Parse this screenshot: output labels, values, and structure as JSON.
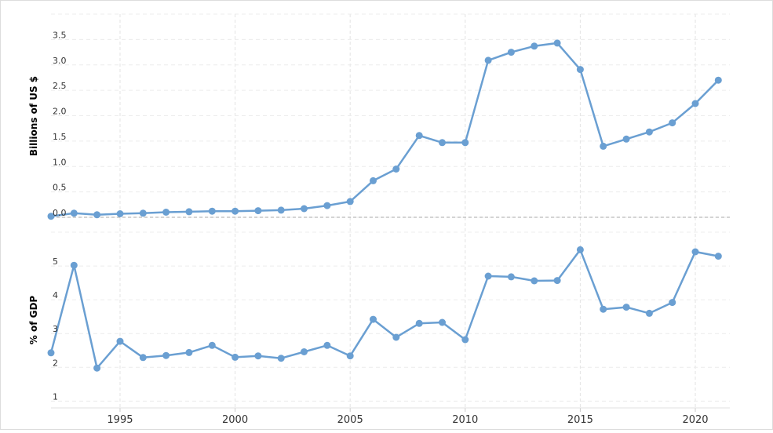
{
  "chart_data": [
    {
      "type": "line",
      "ylabel": "Billions of US $",
      "ylim": [
        0,
        4.0
      ],
      "yticks": [
        0.0,
        0.5,
        1.0,
        1.5,
        2.0,
        2.5,
        3.0,
        3.5
      ],
      "ytick_labels": [
        "0.0",
        "0.5",
        "1.0",
        "1.5",
        "2.0",
        "2.5",
        "3.0",
        "3.5"
      ],
      "grid": true,
      "line_color": "#6a9fd2",
      "x": [
        1992,
        1993,
        1994,
        1995,
        1996,
        1997,
        1998,
        1999,
        2000,
        2001,
        2002,
        2003,
        2004,
        2005,
        2006,
        2007,
        2008,
        2009,
        2010,
        2011,
        2012,
        2013,
        2014,
        2015,
        2016,
        2017,
        2018,
        2019,
        2020,
        2021
      ],
      "series": [
        {
          "values": [
            0.02,
            0.08,
            0.05,
            0.07,
            0.08,
            0.1,
            0.11,
            0.12,
            0.12,
            0.13,
            0.14,
            0.17,
            0.23,
            0.31,
            0.72,
            0.95,
            1.61,
            1.47,
            1.47,
            3.09,
            3.25,
            3.37,
            3.43,
            2.91,
            1.4,
            1.54,
            1.68,
            1.86,
            2.24,
            2.7
          ]
        }
      ]
    },
    {
      "type": "line",
      "ylabel": "% of GDP",
      "ylim": [
        0.8,
        6.0
      ],
      "yticks": [
        1,
        2,
        3,
        4,
        5
      ],
      "ytick_labels": [
        "1",
        "2",
        "3",
        "4",
        "5"
      ],
      "grid": true,
      "line_color": "#6a9fd2",
      "x": [
        1992,
        1993,
        1994,
        1995,
        1996,
        1997,
        1998,
        1999,
        2000,
        2001,
        2002,
        2003,
        2004,
        2005,
        2006,
        2007,
        2008,
        2009,
        2010,
        2011,
        2012,
        2013,
        2014,
        2015,
        2016,
        2017,
        2018,
        2019,
        2020,
        2021
      ],
      "series": [
        {
          "values": [
            2.43,
            5.02,
            1.98,
            2.77,
            2.29,
            2.35,
            2.44,
            2.65,
            2.3,
            2.34,
            2.27,
            2.46,
            2.65,
            2.34,
            3.42,
            2.89,
            3.3,
            3.33,
            2.82,
            4.7,
            4.68,
            4.56,
            4.57,
            5.48,
            3.72,
            3.78,
            3.6,
            3.92,
            5.42,
            5.29
          ]
        }
      ]
    }
  ],
  "xaxis": {
    "ticks": [
      1995,
      2000,
      2005,
      2010,
      2015,
      2020
    ],
    "tick_labels": [
      "1995",
      "2000",
      "2005",
      "2010",
      "2015",
      "2020"
    ],
    "range": [
      1992,
      2021.5
    ]
  }
}
